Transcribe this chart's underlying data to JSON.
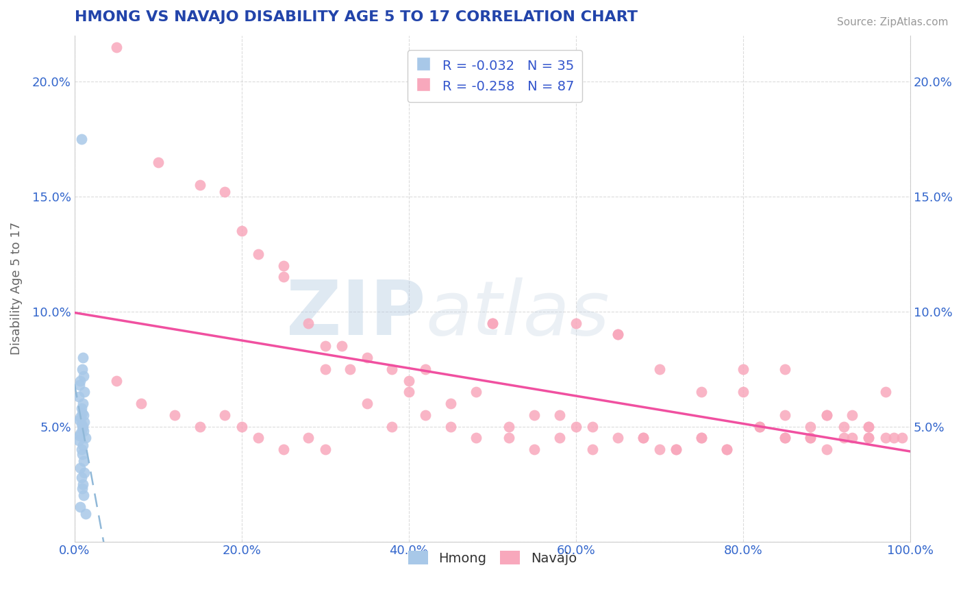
{
  "title": "HMONG VS NAVAJO DISABILITY AGE 5 TO 17 CORRELATION CHART",
  "source": "Source: ZipAtlas.com",
  "ylabel": "Disability Age 5 to 17",
  "xlim": [
    0,
    100
  ],
  "ylim": [
    0,
    22
  ],
  "xticks": [
    0,
    20,
    40,
    60,
    80,
    100
  ],
  "xticklabels": [
    "0.0%",
    "20.0%",
    "40.0%",
    "60.0%",
    "80.0%",
    "100.0%"
  ],
  "yticks": [
    0,
    5,
    10,
    15,
    20
  ],
  "yticklabels": [
    "",
    "5.0%",
    "10.0%",
    "15.0%",
    "20.0%"
  ],
  "hmong_color": "#a8c8e8",
  "navajo_color": "#f8a8bc",
  "hmong_line_color": "#90b8d8",
  "navajo_line_color": "#f050a0",
  "title_color": "#2244aa",
  "axis_label_color": "#666666",
  "tick_color": "#3366cc",
  "legend_color": "#3355cc",
  "hmong_R": -0.032,
  "hmong_N": 35,
  "navajo_R": -0.258,
  "navajo_N": 87,
  "hmong_scatter_x": [
    0.8,
    1.0,
    0.9,
    1.1,
    0.7,
    0.6,
    1.2,
    0.5,
    1.0,
    0.8,
    0.9,
    1.1,
    0.7,
    0.6,
    1.2,
    0.8,
    1.0,
    0.9,
    1.1,
    0.7,
    0.6,
    1.3,
    0.5,
    1.0,
    0.8,
    0.9,
    1.1,
    0.7,
    1.2,
    0.8,
    1.0,
    0.9,
    1.1,
    0.7,
    1.3
  ],
  "hmong_scatter_y": [
    17.5,
    8.0,
    7.5,
    7.2,
    7.0,
    6.8,
    6.5,
    6.3,
    6.0,
    5.8,
    5.6,
    5.5,
    5.4,
    5.3,
    5.2,
    5.1,
    5.0,
    4.9,
    4.8,
    4.7,
    4.6,
    4.5,
    4.4,
    4.2,
    4.0,
    3.8,
    3.5,
    3.2,
    3.0,
    2.8,
    2.5,
    2.3,
    2.0,
    1.5,
    1.2
  ],
  "navajo_scatter_x": [
    5,
    10,
    15,
    18,
    20,
    22,
    25,
    28,
    30,
    32,
    35,
    38,
    40,
    42,
    45,
    48,
    50,
    52,
    55,
    58,
    60,
    62,
    65,
    68,
    70,
    72,
    75,
    78,
    80,
    82,
    85,
    88,
    90,
    92,
    95,
    98,
    5,
    8,
    12,
    15,
    18,
    20,
    22,
    25,
    28,
    30,
    33,
    35,
    38,
    42,
    45,
    48,
    52,
    55,
    58,
    62,
    65,
    68,
    72,
    75,
    78,
    82,
    85,
    88,
    92,
    95,
    25,
    30,
    40,
    50,
    60,
    65,
    70,
    75,
    80,
    85,
    88,
    90,
    93,
    95,
    97,
    85,
    90,
    93,
    95,
    97,
    99
  ],
  "navajo_scatter_y": [
    21.5,
    16.5,
    15.5,
    15.2,
    13.5,
    12.5,
    12.0,
    9.5,
    8.5,
    8.5,
    8.0,
    7.5,
    7.0,
    7.5,
    6.0,
    6.5,
    9.5,
    5.0,
    5.5,
    5.5,
    5.0,
    5.0,
    4.5,
    4.5,
    4.0,
    4.0,
    4.5,
    4.0,
    6.5,
    5.0,
    4.5,
    4.5,
    4.0,
    4.5,
    5.0,
    4.5,
    7.0,
    6.0,
    5.5,
    5.0,
    5.5,
    5.0,
    4.5,
    4.0,
    4.5,
    4.0,
    7.5,
    6.0,
    5.0,
    5.5,
    5.0,
    4.5,
    4.5,
    4.0,
    4.5,
    4.0,
    9.0,
    4.5,
    4.0,
    4.5,
    4.0,
    5.0,
    5.5,
    4.5,
    5.0,
    4.5,
    11.5,
    7.5,
    6.5,
    9.5,
    9.5,
    9.0,
    7.5,
    6.5,
    7.5,
    7.5,
    5.0,
    5.5,
    5.5,
    5.0,
    6.5,
    4.5,
    5.5,
    4.5,
    4.5,
    4.5,
    4.5
  ],
  "watermark_zip": "ZIP",
  "watermark_atlas": "atlas",
  "background_color": "#ffffff",
  "grid_color": "#cccccc"
}
